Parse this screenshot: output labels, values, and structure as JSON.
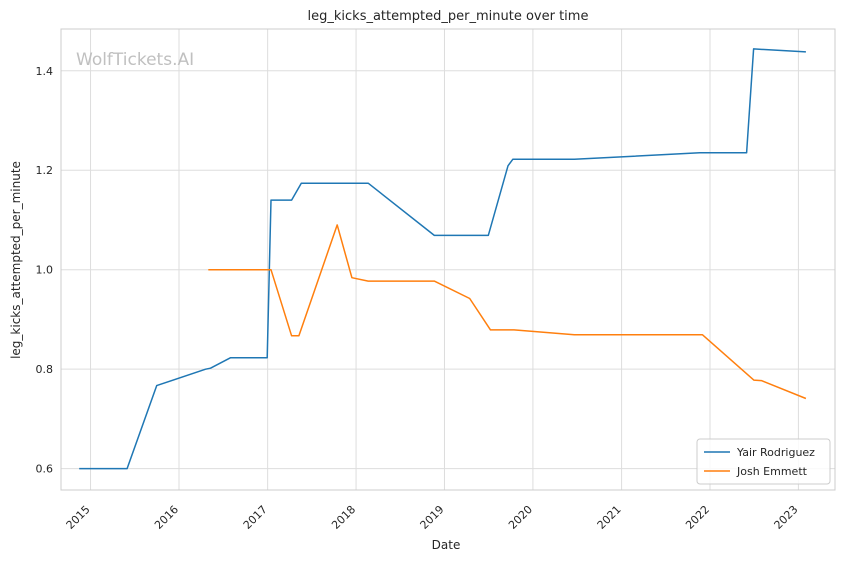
{
  "chart_data": {
    "type": "line",
    "title": "leg_kicks_attempted_per_minute over time",
    "xlabel": "Date",
    "ylabel": "leg_kicks_attempted_per_minute",
    "watermark": "WolfTickets.AI",
    "x_ticks": [
      "2015",
      "2016",
      "2017",
      "2018",
      "2019",
      "2020",
      "2021",
      "2022",
      "2023"
    ],
    "y_ticks": [
      "0.6",
      "0.8",
      "1.0",
      "1.2",
      "1.4"
    ],
    "xlim": [
      "2014-09-01",
      "2023-06-01"
    ],
    "ylim": [
      0.557,
      1.484
    ],
    "grid": true,
    "legend_position": "lower-right",
    "series": [
      {
        "name": "Yair Rodriguez",
        "color": "#1f77b4",
        "points": [
          [
            "2014-11-15",
            0.6
          ],
          [
            "2015-06-01",
            0.6
          ],
          [
            "2015-10-01",
            0.767
          ],
          [
            "2016-04-20",
            0.8
          ],
          [
            "2016-05-10",
            0.802
          ],
          [
            "2016-08-01",
            0.823
          ],
          [
            "2016-12-30",
            0.823
          ],
          [
            "2017-01-15",
            1.14
          ],
          [
            "2017-04-10",
            1.14
          ],
          [
            "2017-05-20",
            1.174
          ],
          [
            "2018-02-20",
            1.174
          ],
          [
            "2018-11-20",
            1.069
          ],
          [
            "2019-07-01",
            1.069
          ],
          [
            "2019-09-20",
            1.209
          ],
          [
            "2019-10-10",
            1.222
          ],
          [
            "2020-06-20",
            1.222
          ],
          [
            "2021-11-20",
            1.235
          ],
          [
            "2022-06-01",
            1.235
          ],
          [
            "2022-06-30",
            1.444
          ],
          [
            "2023-02-01",
            1.438
          ]
        ]
      },
      {
        "name": "Josh Emmett",
        "color": "#ff7f0e",
        "points": [
          [
            "2016-05-01",
            1.0
          ],
          [
            "2017-01-15",
            1.0
          ],
          [
            "2017-04-10",
            0.867
          ],
          [
            "2017-05-10",
            0.867
          ],
          [
            "2017-10-15",
            1.09
          ],
          [
            "2017-12-15",
            0.984
          ],
          [
            "2018-02-20",
            0.977
          ],
          [
            "2018-11-20",
            0.977
          ],
          [
            "2019-04-15",
            0.942
          ],
          [
            "2019-07-10",
            0.879
          ],
          [
            "2019-10-15",
            0.879
          ],
          [
            "2020-06-20",
            0.869
          ],
          [
            "2021-12-01",
            0.869
          ],
          [
            "2022-07-01",
            0.778
          ],
          [
            "2022-08-01",
            0.777
          ],
          [
            "2023-02-01",
            0.741
          ]
        ]
      }
    ]
  }
}
